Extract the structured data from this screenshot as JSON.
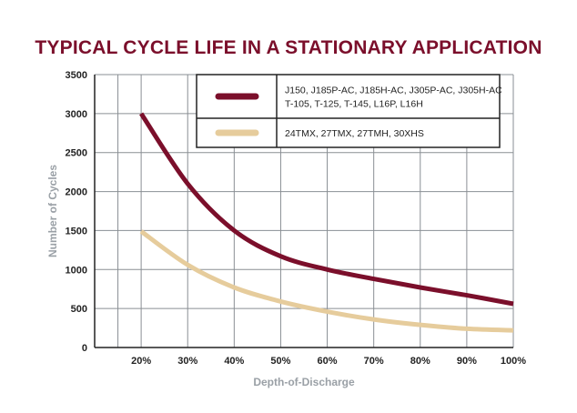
{
  "chart_data": {
    "type": "line",
    "title": "TYPICAL CYCLE LIFE IN A STATIONARY APPLICATION",
    "xlabel": "Depth-of-Discharge",
    "ylabel": "Number of Cycles",
    "x": [
      20,
      30,
      40,
      50,
      60,
      70,
      80,
      90,
      100
    ],
    "x_tick_labels": [
      "20%",
      "30%",
      "40%",
      "50%",
      "60%",
      "70%",
      "80%",
      "90%",
      "100%"
    ],
    "y_ticks": [
      0,
      500,
      1000,
      1500,
      2000,
      2500,
      3000,
      3500
    ],
    "xlim": [
      10,
      100
    ],
    "ylim": [
      0,
      3500
    ],
    "grid": true,
    "legend_position": "top-right",
    "series": [
      {
        "name": "J150, J185P-AC, J185H-AC, J305P-AC, J305H-AC T-105, T-125, T-145, L16P, L16H",
        "legend_lines": [
          "J150, J185P-AC, J185H-AC, J305P-AC, J305H-AC",
          "T-105, T-125, T-145, L16P, L16H"
        ],
        "color": "#7b0f2b",
        "values": [
          3000,
          2100,
          1500,
          1170,
          1000,
          880,
          770,
          670,
          560
        ]
      },
      {
        "name": "24TMX, 27TMX, 27TMH, 30XHS",
        "legend_lines": [
          "24TMX, 27TMX, 27TMH, 30XHS"
        ],
        "color": "#e6cc9c",
        "values": [
          1490,
          1060,
          770,
          590,
          460,
          360,
          290,
          240,
          220
        ]
      }
    ]
  },
  "colors": {
    "title": "#7b0f2b",
    "grid": "#8a8f94",
    "axis": "#222222",
    "axis_label": "#9aa0a6"
  }
}
